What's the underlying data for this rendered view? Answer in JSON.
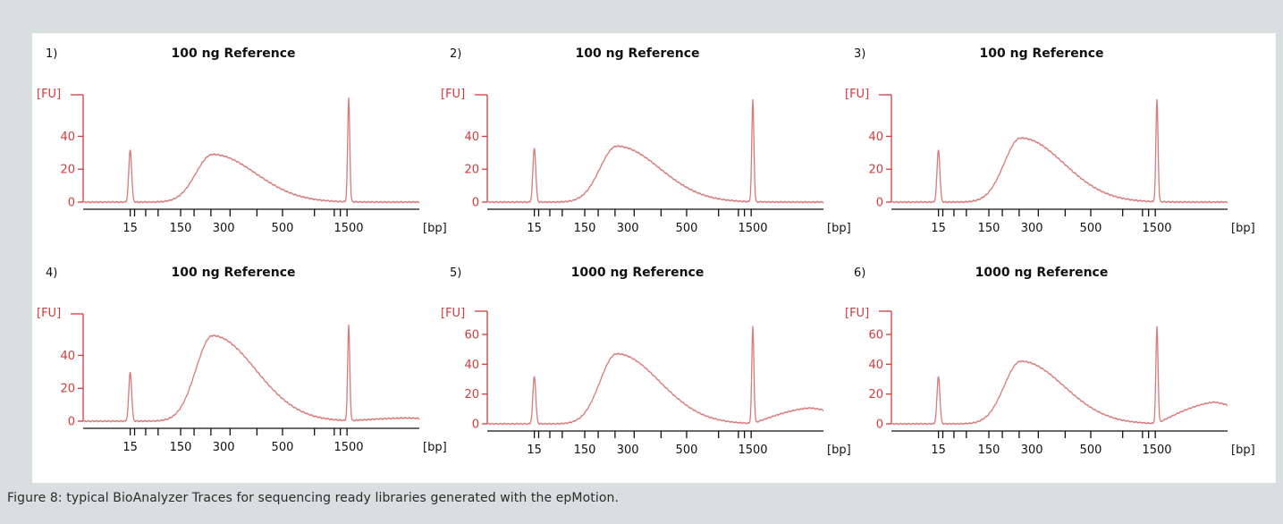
{
  "caption": "Figure 8: typical BioAnalyzer Traces for sequencing ready libraries generated with the epMotion.",
  "colors": {
    "trace": "#d87a7a",
    "axis_red": "#d03c3c",
    "axis_dark": "#111111",
    "background": "#d7dfdf"
  },
  "chart_data": [
    {
      "type": "line",
      "panel_label": "1)",
      "title": "100 ng Reference",
      "ylabel": "[FU]",
      "xlabel": "[bp]",
      "yticks": [
        0,
        20,
        40
      ],
      "ylim": [
        -3,
        62
      ],
      "xtick_labels": [
        "15",
        "150",
        "300",
        "500",
        "1500"
      ],
      "lower_marker_peak": 32,
      "library_peak": 29,
      "upper_marker_peak": 63,
      "upper_tail": 0
    },
    {
      "type": "line",
      "panel_label": "2)",
      "title": "100 ng Reference",
      "ylabel": "[FU]",
      "xlabel": "[bp]",
      "yticks": [
        0,
        20,
        40
      ],
      "ylim": [
        -3,
        62
      ],
      "xtick_labels": [
        "15",
        "150",
        "300",
        "500",
        "1500"
      ],
      "lower_marker_peak": 33,
      "library_peak": 34,
      "upper_marker_peak": 62,
      "upper_tail": 0
    },
    {
      "type": "line",
      "panel_label": "3)",
      "title": "100 ng Reference",
      "ylabel": "[FU]",
      "xlabel": "[bp]",
      "yticks": [
        0,
        20,
        40
      ],
      "ylim": [
        -3,
        62
      ],
      "xtick_labels": [
        "15",
        "150",
        "300",
        "500",
        "1500"
      ],
      "lower_marker_peak": 32,
      "library_peak": 39,
      "upper_marker_peak": 62,
      "upper_tail": 0
    },
    {
      "type": "line",
      "panel_label": "4)",
      "title": "100 ng Reference",
      "ylabel": "[FU]",
      "xlabel": "[bp]",
      "yticks": [
        0,
        20,
        40
      ],
      "ylim": [
        -3,
        62
      ],
      "xtick_labels": [
        "15",
        "150",
        "300",
        "500",
        "1500"
      ],
      "lower_marker_peak": 30,
      "library_peak": 52,
      "upper_marker_peak": 58,
      "upper_tail": 2
    },
    {
      "type": "line",
      "panel_label": "5)",
      "title": "1000 ng Reference",
      "ylabel": "[FU]",
      "xlabel": "[bp]",
      "yticks": [
        0,
        20,
        40,
        60
      ],
      "ylim": [
        -3,
        72
      ],
      "xtick_labels": [
        "15",
        "150",
        "300",
        "500",
        "1500"
      ],
      "lower_marker_peak": 32,
      "library_peak": 47,
      "upper_marker_peak": 65,
      "upper_tail": 11
    },
    {
      "type": "line",
      "panel_label": "6)",
      "title": "1000 ng Reference",
      "ylabel": "[FU]",
      "xlabel": "[bp]",
      "yticks": [
        0,
        20,
        40,
        60
      ],
      "ylim": [
        -3,
        72
      ],
      "xtick_labels": [
        "15",
        "150",
        "300",
        "500",
        "1500"
      ],
      "lower_marker_peak": 32,
      "library_peak": 42,
      "upper_marker_peak": 65,
      "upper_tail": 15
    }
  ]
}
